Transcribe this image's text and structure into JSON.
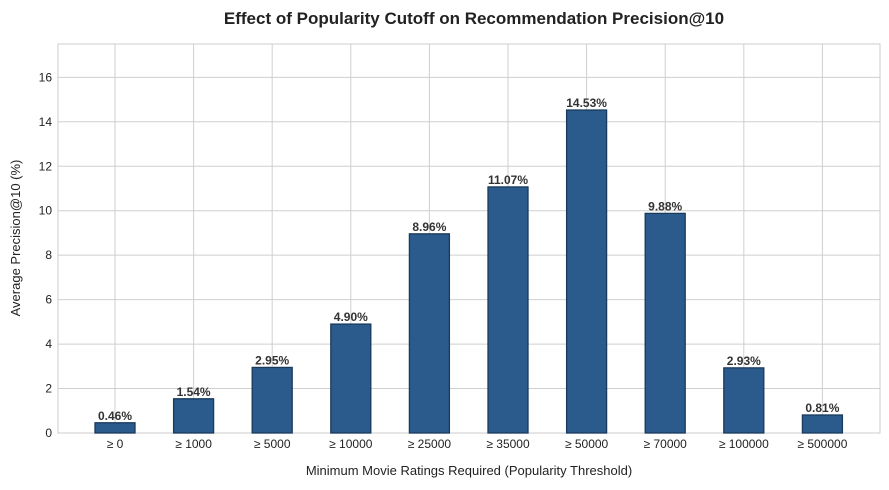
{
  "chart_data": {
    "type": "bar",
    "title": "Effect of Popularity Cutoff on Recommendation Precision@10",
    "xlabel": "Minimum Movie Ratings Required (Popularity Threshold)",
    "ylabel": "Average Precision@10 (%)",
    "categories": [
      "≥ 0",
      "≥ 1000",
      "≥ 5000",
      "≥ 10000",
      "≥ 25000",
      "≥ 35000",
      "≥ 50000",
      "≥ 70000",
      "≥ 100000",
      "≥ 500000"
    ],
    "values": [
      0.46,
      1.54,
      2.95,
      4.9,
      8.96,
      11.07,
      14.53,
      9.88,
      2.93,
      0.81
    ],
    "data_labels": [
      "0.46%",
      "1.54%",
      "2.95%",
      "4.90%",
      "8.96%",
      "11.07%",
      "14.53%",
      "9.88%",
      "2.93%",
      "0.81%"
    ],
    "ylim": [
      0,
      17.5
    ],
    "yticks": [
      0,
      2,
      4,
      6,
      8,
      10,
      12,
      14,
      16
    ],
    "grid": true,
    "legend": "none",
    "colors": {
      "bar": "#2a5b8c",
      "bar_edge": "#1a3a5c"
    }
  }
}
